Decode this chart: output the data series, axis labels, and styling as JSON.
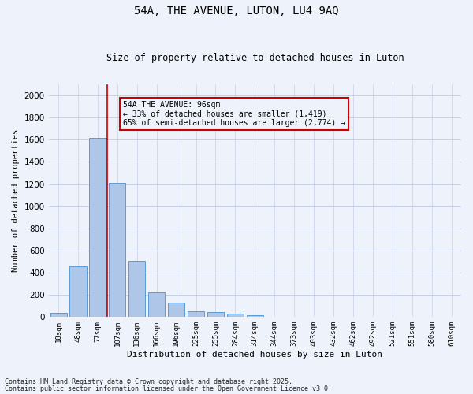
{
  "title1": "54A, THE AVENUE, LUTON, LU4 9AQ",
  "title2": "Size of property relative to detached houses in Luton",
  "xlabel": "Distribution of detached houses by size in Luton",
  "ylabel": "Number of detached properties",
  "categories": [
    "18sqm",
    "48sqm",
    "77sqm",
    "107sqm",
    "136sqm",
    "166sqm",
    "196sqm",
    "225sqm",
    "255sqm",
    "284sqm",
    "314sqm",
    "344sqm",
    "373sqm",
    "403sqm",
    "432sqm",
    "462sqm",
    "492sqm",
    "521sqm",
    "551sqm",
    "580sqm",
    "610sqm"
  ],
  "values": [
    35,
    455,
    1620,
    1210,
    505,
    225,
    130,
    50,
    45,
    28,
    18,
    5,
    0,
    0,
    0,
    0,
    0,
    0,
    0,
    0,
    0
  ],
  "bar_color": "#aec6e8",
  "bar_edge_color": "#5b9bd5",
  "vline_color": "#cc0000",
  "vline_x_index": 2.5,
  "annotation_text": "54A THE AVENUE: 96sqm\n← 33% of detached houses are smaller (1,419)\n65% of semi-detached houses are larger (2,774) →",
  "annotation_box_color": "#cc0000",
  "ylim": [
    0,
    2100
  ],
  "yticks": [
    0,
    200,
    400,
    600,
    800,
    1000,
    1200,
    1400,
    1600,
    1800,
    2000
  ],
  "footer1": "Contains HM Land Registry data © Crown copyright and database right 2025.",
  "footer2": "Contains public sector information licensed under the Open Government Licence v3.0.",
  "bg_color": "#eef2fa",
  "grid_color": "#c8d0e8"
}
